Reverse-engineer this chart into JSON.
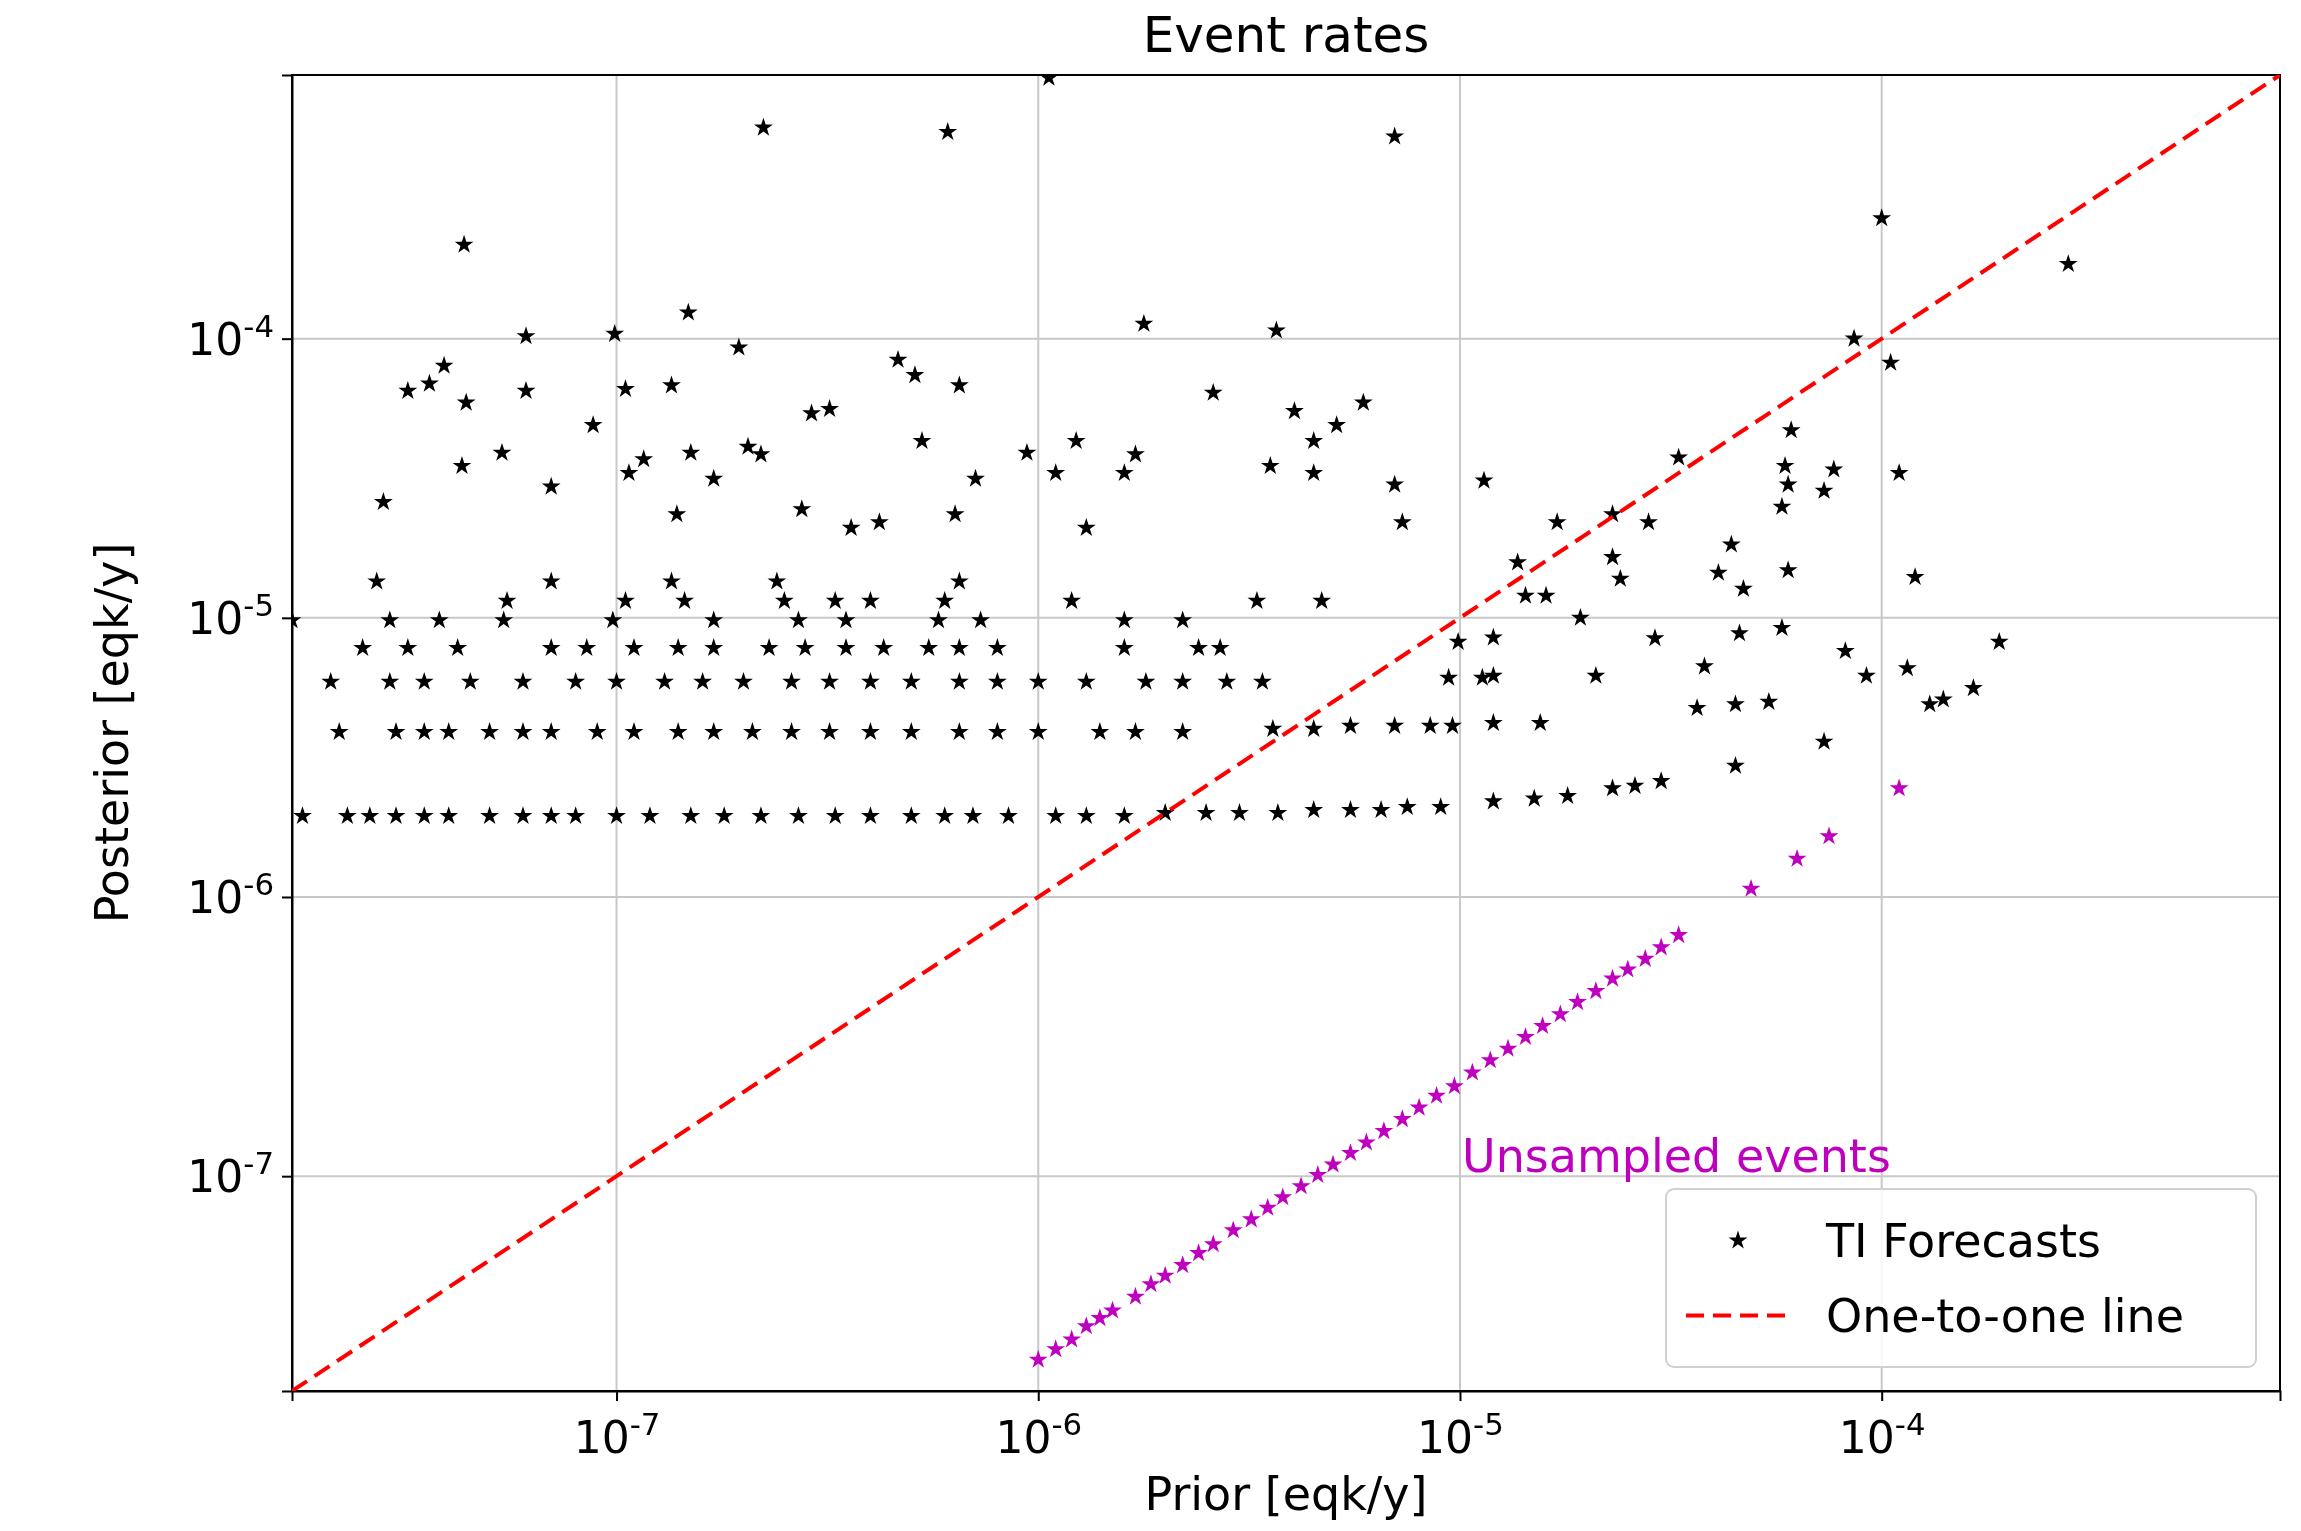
{
  "chart_data": {
    "type": "scatter",
    "title": "Event rates",
    "xlabel": "Prior [eqk/y]",
    "ylabel": "Posterior [eqk/y]",
    "log": "xy",
    "grid": true,
    "legend": "bottom right",
    "xlim": [
      1.7e-08,
      0.00088
    ],
    "ylim": [
      1.7e-08,
      0.00088
    ],
    "xticks": [
      {
        "value": 1e-07,
        "label": "10$^{-7}$"
      },
      {
        "value": 1e-06,
        "label": "10$^{-6}$"
      },
      {
        "value": 1e-05,
        "label": "10$^{-5}$"
      },
      {
        "value": 0.0001,
        "label": "10$^{-4}$"
      }
    ],
    "yticks": [
      {
        "value": 1e-07,
        "label": "10$^{-7}$"
      },
      {
        "value": 1e-06,
        "label": "10$^{-6}$"
      },
      {
        "value": 1e-05,
        "label": "10$^{-5}$"
      },
      {
        "value": 0.0001,
        "label": "10$^{-4}$"
      }
    ],
    "annotations": [
      "Unsampled events"
    ],
    "series": [
      {
        "name": "TI Forecasts",
        "marker": "star",
        "color": "#000000",
        "x": [
          1.8e-08,
          2.3e-08,
          2.6e-08,
          3e-08,
          3.5e-08,
          4e-08,
          5e-08,
          6e-08,
          7e-08,
          8e-08,
          1e-07,
          1.2e-07,
          1.5e-07,
          1.8e-07,
          2.2e-07,
          2.7e-07,
          3.3e-07,
          4e-07,
          5e-07,
          6e-07,
          7e-07,
          8.5e-07,
          1.1e-06,
          1.3e-06,
          1.6e-06,
          2e-06,
          2.5e-06,
          3e-06,
          3.7e-06,
          4.5e-06,
          5.5e-06,
          6.5e-06,
          7.5e-06,
          9e-06,
          1.2e-05,
          1.5e-05,
          1.8e-05,
          2.3e-05,
          2.6e-05,
          3e-05,
          2.2e-08,
          3e-08,
          3.5e-08,
          4e-08,
          5e-08,
          6e-08,
          7e-08,
          9e-08,
          1.1e-07,
          1.4e-07,
          1.7e-07,
          2.1e-07,
          2.6e-07,
          3.2e-07,
          4e-07,
          5e-07,
          6.5e-07,
          8e-07,
          1e-06,
          1.4e-06,
          1.7e-06,
          2.2e-06,
          3.6e-06,
          4.5e-06,
          5.5e-06,
          7e-06,
          8.5e-06,
          1.2e-05,
          2.1e-08,
          2.9e-08,
          3.5e-08,
          4.5e-08,
          6e-08,
          8e-08,
          1e-07,
          1.3e-07,
          1.6e-07,
          2e-07,
          2.6e-07,
          3.2e-07,
          4e-07,
          5e-07,
          6.5e-07,
          8e-07,
          1e-06,
          1.3e-06,
          1.8e-06,
          2.2e-06,
          2.8e-06,
          3.4e-06,
          2.5e-08,
          3.2e-08,
          4.2e-08,
          7e-08,
          8.5e-08,
          1.1e-07,
          1.4e-07,
          1.7e-07,
          2.3e-07,
          2.8e-07,
          3.5e-07,
          4.3e-07,
          5.5e-07,
          6.5e-07,
          8e-07,
          1.6e-06,
          2.4e-06,
          2.7e-06,
          5.5e-08,
          1.05e-07,
          1.45e-07,
          2.5e-07,
          3.3e-07,
          4e-07,
          6e-07,
          1.2e-06,
          3.3e-06,
          4.7e-06,
          2.7e-08,
          7e-08,
          1.35e-07,
          2.4e-07,
          6.5e-07,
          1.7e-08,
          2.9e-08,
          3.8e-08,
          5.4e-08,
          9.8e-08,
          1.7e-07,
          2.7e-07,
          3.5e-07,
          5.8e-07,
          7.3e-07,
          1.6e-06,
          2.2e-06,
          4.35e-08,
          2.23e-07,
          6.1e-07,
          7e-06,
          1.06e-06,
          1.48e-07,
          6.1e-08,
          9.9e-08,
          1.95e-07,
          1.78e-06,
          3.67e-06,
          3.2e-08,
          3.6e-08,
          3.9e-08,
          4.4e-08,
          6.1e-08,
          1.05e-07,
          1.35e-07,
          2.9e-07,
          3.2e-07,
          4.65e-07,
          5.1e-07,
          6.5e-07,
          5.3e-07,
          1.23e-06,
          2.6e-06,
          4.05e-06,
          5.9e-06,
          5.1e-06,
          4.5e-06,
          4.5e-06,
          0.0001,
          0.000277,
          8.6e-05,
          0.000105,
          2.8e-08,
          4.3e-08,
          5.35e-08,
          7e-08,
          8.8e-08,
          1.07e-07,
          1.16e-07,
          1.5e-07,
          1.39e-07,
          1.7e-07,
          2.05e-07,
          2.2e-07,
          2.75e-07,
          3.6e-07,
          4.2e-07,
          6.35e-07,
          7.1e-07,
          9.4e-07,
          1.1e-06,
          1.3e-06,
          1.7e-06,
          1.6e-06,
          3.55e-06,
          7e-06,
          7.3e-06,
          1.14e-05,
          1.7e-05,
          2.3e-05,
          2.8e-05,
          3.3e-05,
          5.9e-05,
          6.1e-05,
          7.7e-05,
          0.00011,
          5.8e-05,
          6e-05,
          7.3e-05,
          1.37e-05,
          1.43e-05,
          1.6e-05,
          1.93e-05,
          2.1e-05,
          2.3e-05,
          2.4e-05,
          2.9e-05,
          4.1e-05,
          4.4e-05,
          4.7e-05,
          4.6e-05,
          4.5e-05,
          3.65e-05,
          3.8e-05,
          4.5e-05,
          5.4e-05,
          6e-05,
          5.8e-05,
          7.3e-05,
          8.2e-05,
          9.2e-05,
          0.000115,
          0.00012,
          0.00013,
          0.00014,
          0.000165,
          0.00019,
          1.2e-05,
          1.13e-05,
          1.2e-05,
          1.55e-05,
          9.9e-06,
          9.4e-06,
          9.6e-06
        ],
        "values": [
          1.95e-06,
          1.95e-06,
          1.95e-06,
          1.95e-06,
          1.95e-06,
          1.95e-06,
          1.95e-06,
          1.95e-06,
          1.95e-06,
          1.95e-06,
          1.95e-06,
          1.95e-06,
          1.95e-06,
          1.95e-06,
          1.95e-06,
          1.95e-06,
          1.95e-06,
          1.95e-06,
          1.95e-06,
          1.95e-06,
          1.95e-06,
          1.95e-06,
          1.95e-06,
          1.95e-06,
          1.95e-06,
          2e-06,
          2e-06,
          2e-06,
          2e-06,
          2.05e-06,
          2.05e-06,
          2.05e-06,
          2.1e-06,
          2.1e-06,
          2.2e-06,
          2.25e-06,
          2.3e-06,
          2.45e-06,
          2.5e-06,
          2.6e-06,
          3.9e-06,
          3.9e-06,
          3.9e-06,
          3.9e-06,
          3.9e-06,
          3.9e-06,
          3.9e-06,
          3.9e-06,
          3.9e-06,
          3.9e-06,
          3.9e-06,
          3.9e-06,
          3.9e-06,
          3.9e-06,
          3.9e-06,
          3.9e-06,
          3.9e-06,
          3.9e-06,
          3.9e-06,
          3.9e-06,
          3.9e-06,
          3.9e-06,
          4e-06,
          4e-06,
          4.1e-06,
          4.1e-06,
          4.1e-06,
          4.2e-06,
          5.9e-06,
          5.9e-06,
          5.9e-06,
          5.9e-06,
          5.9e-06,
          5.9e-06,
          5.9e-06,
          5.9e-06,
          5.9e-06,
          5.9e-06,
          5.9e-06,
          5.9e-06,
          5.9e-06,
          5.9e-06,
          5.9e-06,
          5.9e-06,
          5.9e-06,
          5.9e-06,
          5.9e-06,
          5.9e-06,
          5.9e-06,
          5.9e-06,
          7.8e-06,
          7.8e-06,
          7.8e-06,
          7.8e-06,
          7.8e-06,
          7.8e-06,
          7.8e-06,
          7.8e-06,
          7.8e-06,
          7.8e-06,
          7.8e-06,
          7.8e-06,
          7.8e-06,
          7.8e-06,
          7.8e-06,
          7.8e-06,
          7.8e-06,
          7.8e-06,
          1.15e-05,
          1.15e-05,
          1.15e-05,
          1.15e-05,
          1.15e-05,
          1.15e-05,
          1.15e-05,
          1.15e-05,
          1.15e-05,
          1.15e-05,
          1.35e-05,
          1.35e-05,
          1.35e-05,
          1.35e-05,
          1.35e-05,
          9.8e-06,
          9.8e-06,
          9.8e-06,
          9.8e-06,
          9.8e-06,
          9.8e-06,
          9.8e-06,
          9.8e-06,
          9.8e-06,
          9.8e-06,
          9.8e-06,
          9.8e-06,
          0.000217,
          0.00057,
          0.00055,
          0.00053,
          0.00086,
          0.000124,
          0.000102,
          0.000104,
          9.3e-05,
          0.000113,
          0.000107,
          6.5e-05,
          6.9e-05,
          8e-05,
          5.9e-05,
          6.5e-05,
          6.6e-05,
          6.8e-05,
          5.4e-05,
          5.6e-05,
          8.4e-05,
          7.4e-05,
          6.8e-05,
          4.3e-05,
          4.3e-05,
          6.4e-05,
          5.5e-05,
          5.9e-05,
          4.9e-05,
          4.3e-05,
          3.3e-05,
          0.00027,
          0.000185,
          0.0001,
          8.2e-05,
          2.6e-05,
          3.5e-05,
          3.9e-05,
          2.95e-05,
          4.9e-05,
          3.3e-05,
          3.7e-05,
          3.9e-05,
          2.35e-05,
          3.15e-05,
          4.1e-05,
          3.85e-05,
          2.45e-05,
          2.1e-05,
          2.2e-05,
          2.35e-05,
          3.15e-05,
          3.9e-05,
          3.3e-05,
          2.1e-05,
          3.85e-05,
          3.3e-05,
          3.5e-05,
          3e-05,
          2.2e-05,
          3.1e-05,
          2.2e-05,
          2.35e-05,
          2.2e-05,
          3.75e-05,
          3.5e-05,
          4.7e-05,
          3.4e-05,
          3.3e-05,
          2.5e-05,
          3e-05,
          2.85e-05,
          1.58e-05,
          1.2e-05,
          1.2e-05,
          1e-05,
          6.2e-06,
          1.65e-05,
          1.38e-05,
          8.45e-06,
          1.45e-05,
          1.83e-05,
          1.27e-05,
          8.8e-06,
          4.9e-06,
          4.75e-06,
          6.7e-06,
          2.95e-06,
          5e-06,
          1.48e-05,
          9.2e-06,
          3.6e-06,
          7.6e-06,
          6.2e-06,
          6.6e-06,
          1.4e-05,
          4.9e-06,
          5.1e-06,
          5.6e-06,
          8.2e-06,
          8.5e-06,
          6.1e-06,
          6.2e-06,
          4.2e-06,
          8.2e-06,
          6.1e-06,
          4.1e-06
        ]
      },
      {
        "marker": "star",
        "color": "#bf00bf",
        "x": [
          1e-06,
          1.1e-06,
          1.2e-06,
          1.3e-06,
          1.4e-06,
          1.5e-06,
          1.7e-06,
          1.85e-06,
          2e-06,
          2.2e-06,
          2.4e-06,
          2.6e-06,
          2.9e-06,
          3.2e-06,
          3.5e-06,
          3.8e-06,
          4.2e-06,
          4.6e-06,
          5e-06,
          5.5e-06,
          6e-06,
          6.6e-06,
          7.3e-06,
          8e-06,
          8.8e-06,
          9.7e-06,
          1.07e-05,
          1.18e-05,
          1.3e-05,
          1.43e-05,
          1.57e-05,
          1.73e-05,
          1.9e-05,
          2.1e-05,
          2.3e-05,
          2.5e-05,
          2.75e-05,
          3e-05,
          3.3e-05,
          4.9e-05,
          6.3e-05,
          7.5e-05,
          0.00011
        ],
        "values": [
          2.2e-08,
          2.4e-08,
          2.6e-08,
          2.9e-08,
          3.1e-08,
          3.3e-08,
          3.7e-08,
          4.1e-08,
          4.4e-08,
          4.8e-08,
          5.3e-08,
          5.7e-08,
          6.4e-08,
          7e-08,
          7.7e-08,
          8.4e-08,
          9.2e-08,
          1.01e-07,
          1.1e-07,
          1.21e-07,
          1.32e-07,
          1.45e-07,
          1.6e-07,
          1.76e-07,
          1.94e-07,
          2.1e-07,
          2.35e-07,
          2.6e-07,
          2.86e-07,
          3.15e-07,
          3.45e-07,
          3.8e-07,
          4.2e-07,
          4.6e-07,
          5.1e-07,
          5.5e-07,
          6e-07,
          6.6e-07,
          7.3e-07,
          1.07e-06,
          1.37e-06,
          1.65e-06,
          2.45e-06
        ]
      },
      {
        "name": "One-to-one line",
        "type": "line",
        "marker": "none",
        "color": "#ff0000",
        "line_style": "dashed",
        "x": [
          1.7e-08,
          0.00088
        ],
        "values": [
          1.7e-08,
          0.00088
        ]
      }
    ]
  }
}
